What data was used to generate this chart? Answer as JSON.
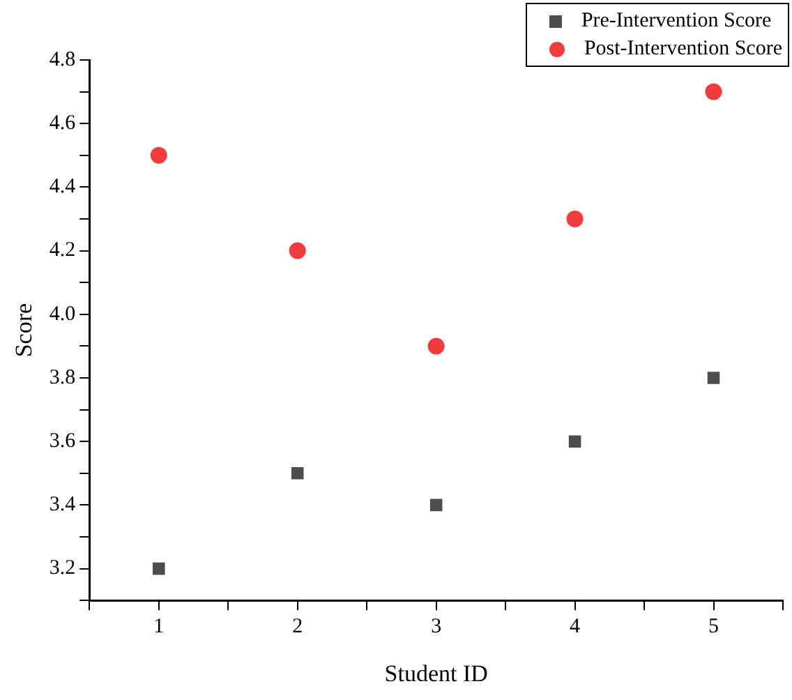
{
  "chart_data": {
    "type": "scatter",
    "xlabel": "Student ID",
    "ylabel": "Score",
    "x": [
      1,
      2,
      3,
      4,
      5
    ],
    "series": [
      {
        "name": "Pre-Intervention Score",
        "color": "#4d4d4d",
        "marker": "square",
        "values": [
          3.2,
          3.5,
          3.4,
          3.6,
          3.8
        ]
      },
      {
        "name": "Post-Intervention Score",
        "color": "#f03c3c",
        "marker": "circle",
        "values": [
          4.5,
          4.2,
          3.9,
          4.3,
          4.7
        ]
      }
    ],
    "xlim": [
      0.5,
      5.5
    ],
    "ylim": [
      3.1,
      4.8
    ],
    "xticks": [
      {
        "value": 0.5,
        "label": null
      },
      1,
      {
        "value": 1.5,
        "label": null
      },
      2,
      {
        "value": 2.5,
        "label": null
      },
      3,
      {
        "value": 3.5,
        "label": null
      },
      4,
      {
        "value": 4.5,
        "label": null
      },
      5,
      {
        "value": 5.5,
        "label": null
      }
    ],
    "yticks": [
      {
        "value": 3.1,
        "label": null
      },
      3.2,
      {
        "value": 3.3,
        "label": null
      },
      3.4,
      {
        "value": 3.5,
        "label": null
      },
      3.6,
      {
        "value": 3.7,
        "label": null
      },
      3.8,
      {
        "value": 3.9,
        "label": null
      },
      {
        "value": 4.0,
        "label": "4.0"
      },
      {
        "value": 4.1,
        "label": null
      },
      4.2,
      {
        "value": 4.3,
        "label": null
      },
      4.4,
      {
        "value": 4.5,
        "label": null
      },
      4.6,
      {
        "value": 4.7,
        "label": null
      },
      {
        "value": 4.8,
        "label": "4.8"
      }
    ],
    "grid": false,
    "legend": "top right"
  }
}
